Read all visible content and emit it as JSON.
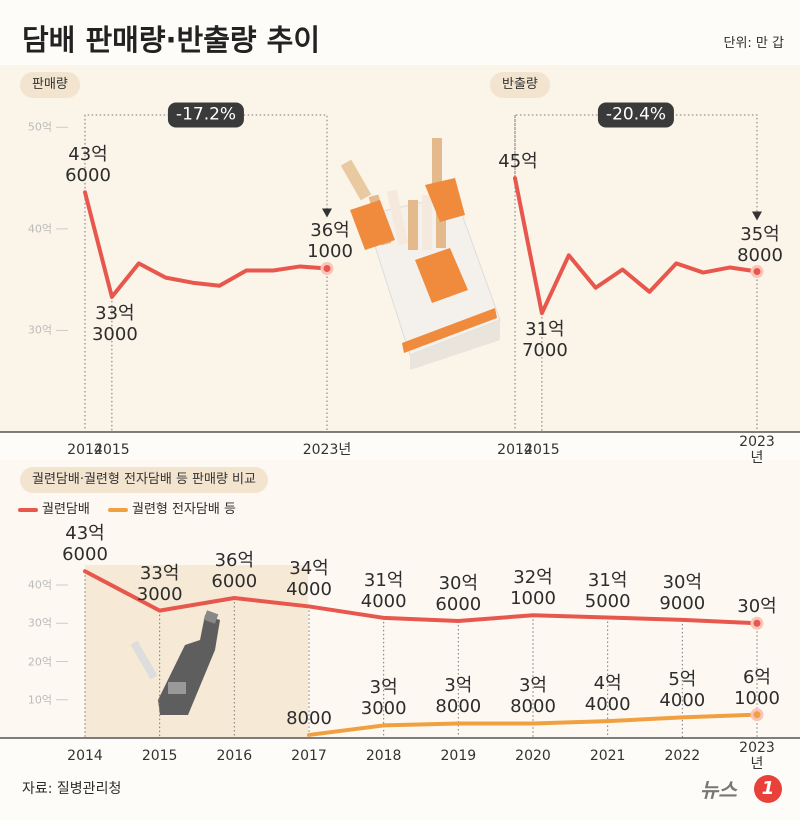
{
  "page": {
    "title": "담배 판매량·반출량 추이",
    "unit": "단위: 만 갑",
    "source": "자료: 질병관리청",
    "logo": {
      "name": "뉴스",
      "number": "1"
    }
  },
  "chart_data": [
    {
      "type": "line",
      "title": "판매량",
      "color": "#e8574e",
      "x": [
        2014,
        2015,
        2016,
        2017,
        2018,
        2019,
        2020,
        2021,
        2022,
        2023
      ],
      "values": [
        43.6,
        33.3,
        36.6,
        35.2,
        34.7,
        34.4,
        35.9,
        35.9,
        36.3,
        36.1
      ],
      "value_labels": [
        "43억\n6000",
        "33억\n3000",
        null,
        null,
        null,
        null,
        null,
        null,
        null,
        "36억\n1000"
      ],
      "xlim": [
        2014,
        2023
      ],
      "xticks": [
        2014,
        2015,
        {
          "value": 2023,
          "label": "2023년"
        }
      ],
      "ylim": [
        20,
        52
      ],
      "yticks": [
        {
          "value": 30,
          "label": "30억"
        },
        {
          "value": 40,
          "label": "40억"
        },
        {
          "value": 50,
          "label": "50억"
        }
      ],
      "annotation": "-17.2%"
    },
    {
      "type": "line",
      "title": "반출량",
      "color": "#e8574e",
      "x": [
        2014,
        2015,
        2016,
        2017,
        2018,
        2019,
        2020,
        2021,
        2022,
        2023
      ],
      "values": [
        45,
        31.7,
        37.4,
        34.2,
        36.0,
        33.8,
        36.6,
        35.7,
        36.2,
        35.8
      ],
      "value_labels": [
        "45억",
        "31억\n7000",
        null,
        null,
        null,
        null,
        null,
        null,
        null,
        "35억\n8000"
      ],
      "xlim": [
        2014,
        2023
      ],
      "xticks": [
        2014,
        2015,
        {
          "value": 2023,
          "label": "2023년"
        }
      ],
      "ylim": [
        20,
        52
      ],
      "annotation": "-20.4%"
    },
    {
      "type": "line",
      "title": "궐련담배·궐련형 전자담배 등 판매량 비교",
      "categories": [
        "2014",
        "2015",
        "2016",
        "2017",
        "2018",
        "2019",
        "2020",
        "2021",
        "2022",
        "2023년"
      ],
      "series": [
        {
          "name": "궐련담배",
          "color": "#e8574e",
          "values": [
            43.6,
            33.3,
            36.6,
            34.4,
            31.4,
            30.6,
            32.1,
            31.5,
            30.9,
            30
          ],
          "value_labels": [
            "43억\n6000",
            "33억\n3000",
            "36억\n6000",
            "34억\n4000",
            "31억\n4000",
            "30억\n6000",
            "32억\n1000",
            "31억\n5000",
            "30억\n9000",
            "30억"
          ]
        },
        {
          "name": "궐련형 전자담배 등",
          "color": "#f0a040",
          "values": [
            null,
            null,
            null,
            0.8,
            3.3,
            3.8,
            3.8,
            4.4,
            5.4,
            6.1
          ],
          "value_labels": [
            null,
            null,
            null,
            "8000",
            "3억\n3000",
            "3억\n8000",
            "3억\n8000",
            "4억\n4000",
            "5억\n4000",
            "6억\n1000"
          ]
        }
      ],
      "ylim": [
        0,
        57
      ],
      "yticks": [
        {
          "value": 10,
          "label": "10억"
        },
        {
          "value": 20,
          "label": "20억"
        },
        {
          "value": 30,
          "label": "30억"
        },
        {
          "value": 40,
          "label": "40억"
        }
      ]
    }
  ]
}
